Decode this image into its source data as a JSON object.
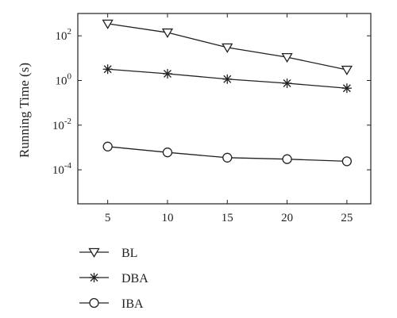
{
  "chart_data": {
    "type": "line",
    "title": "",
    "xlabel": "",
    "ylabel": "Running Time (s)",
    "x": [
      5,
      10,
      15,
      20,
      25
    ],
    "xlim": [
      2.5,
      27
    ],
    "ylim": [
      3e-06,
      1000
    ],
    "yscale": "log",
    "x_ticks": [
      5,
      10,
      15,
      20,
      25
    ],
    "y_ticks": [
      {
        "value": 100,
        "base": "10",
        "exp": "2"
      },
      {
        "value": 1,
        "base": "10",
        "exp": "0"
      },
      {
        "value": 0.01,
        "base": "10",
        "exp": "-2"
      },
      {
        "value": 0.0001,
        "base": "10",
        "exp": "-4"
      }
    ],
    "grid": false,
    "legend_position": "below the plot, left",
    "series": [
      {
        "name": "BL",
        "marker": "triangle-down",
        "values": [
          350,
          140,
          30,
          11,
          3
        ]
      },
      {
        "name": "DBA",
        "marker": "asterisk",
        "values": [
          3.2,
          2.0,
          1.15,
          0.75,
          0.45
        ]
      },
      {
        "name": "IBA",
        "marker": "circle",
        "values": [
          0.0011,
          0.0006,
          0.00035,
          0.0003,
          0.00024
        ]
      }
    ]
  }
}
